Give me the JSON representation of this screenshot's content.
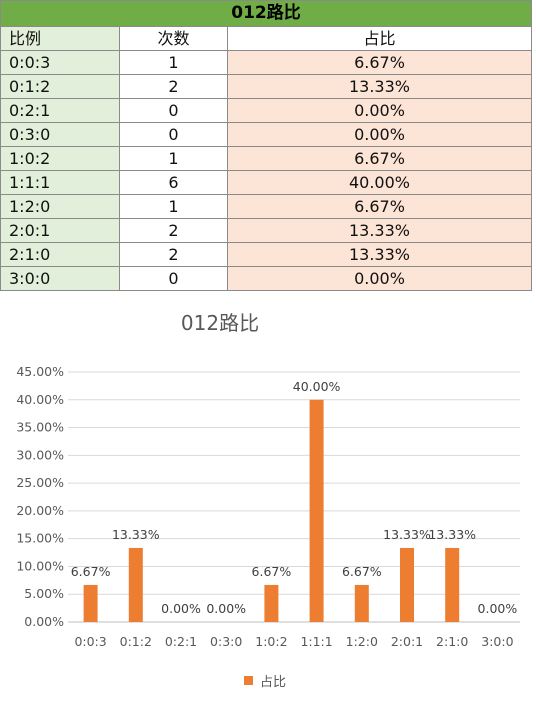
{
  "table": {
    "title": "012路比",
    "headers": [
      "比例",
      "次数",
      "占比"
    ],
    "rows": [
      [
        "0:0:3",
        "1",
        "6.67%"
      ],
      [
        "0:1:2",
        "2",
        "13.33%"
      ],
      [
        "0:2:1",
        "0",
        "0.00%"
      ],
      [
        "0:3:0",
        "0",
        "0.00%"
      ],
      [
        "1:0:2",
        "1",
        "6.67%"
      ],
      [
        "1:1:1",
        "6",
        "40.00%"
      ],
      [
        "1:2:0",
        "1",
        "6.67%"
      ],
      [
        "2:0:1",
        "2",
        "13.33%"
      ],
      [
        "2:1:0",
        "2",
        "13.33%"
      ],
      [
        "3:0:0",
        "0",
        "0.00%"
      ]
    ]
  },
  "colors": {
    "title_bg": "#70ad47",
    "ratio_col_bg": "#e2efda",
    "percent_col_bg": "#fce4d6",
    "bar": "#ed7d31",
    "grid": "#d9d9d9"
  },
  "chart_data": {
    "type": "bar",
    "title": "012路比",
    "categories": [
      "0:0:3",
      "0:1:2",
      "0:2:1",
      "0:3:0",
      "1:0:2",
      "1:1:1",
      "1:2:0",
      "2:0:1",
      "2:1:0",
      "3:0:0"
    ],
    "series": [
      {
        "name": "占比",
        "values": [
          6.67,
          13.33,
          0,
          0,
          6.67,
          40.0,
          6.67,
          13.33,
          13.33,
          0
        ]
      }
    ],
    "data_labels": [
      "6.67%",
      "13.33%",
      "0.00%",
      "0.00%",
      "6.67%",
      "40.00%",
      "6.67%",
      "13.33%",
      "13.33%",
      "0.00%"
    ],
    "yticks": [
      "0.00%",
      "5.00%",
      "10.00%",
      "15.00%",
      "20.00%",
      "25.00%",
      "30.00%",
      "35.00%",
      "40.00%",
      "45.00%"
    ],
    "ylim": [
      0,
      45
    ],
    "grid": true,
    "legend": "bottom"
  }
}
